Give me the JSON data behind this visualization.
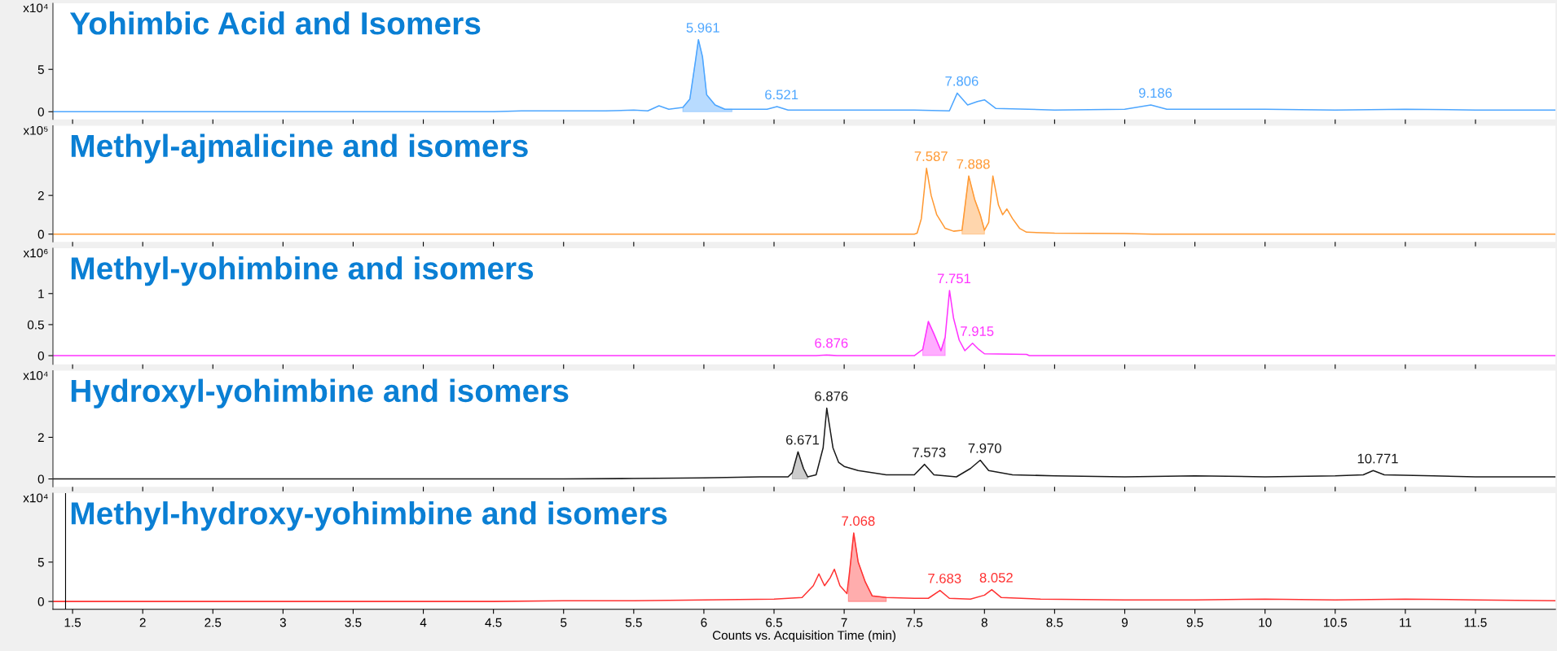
{
  "chart_data": [
    {
      "type": "line",
      "title": "Yohimbic Acid and Isomers",
      "ylabel": "x10⁴",
      "xlim": [
        1.36,
        12.07
      ],
      "ylim": [
        -0.9,
        12.8
      ],
      "yticks": [
        0,
        5
      ],
      "xticks": [
        1.5,
        2,
        2.5,
        3,
        3.5,
        4,
        4.5,
        5,
        5.5,
        6,
        6.5,
        7,
        7.5,
        8,
        8.5,
        9,
        9.5,
        10,
        10.5,
        11,
        11.5
      ],
      "tick_labels": "y",
      "series": [
        {
          "color": "#4da6ff",
          "x": [
            1.36,
            4.5,
            4.7,
            5.3,
            5.5,
            5.6,
            5.68,
            5.75,
            5.85,
            5.9,
            5.94,
            5.961,
            5.99,
            6.02,
            6.08,
            6.15,
            6.3,
            6.45,
            6.521,
            6.6,
            7.0,
            7.5,
            7.75,
            7.806,
            7.88,
            7.95,
            8.0,
            8.08,
            8.5,
            9.0,
            9.186,
            9.3,
            10,
            10.5,
            11,
            11.5,
            12.07
          ],
          "values": [
            0.0,
            0.0,
            0.1,
            0.1,
            0.2,
            0.1,
            0.7,
            0.3,
            0.5,
            1.5,
            6.0,
            8.5,
            6.5,
            2.0,
            0.8,
            0.3,
            0.3,
            0.3,
            0.6,
            0.2,
            0.2,
            0.2,
            0.1,
            2.2,
            0.8,
            1.2,
            1.4,
            0.4,
            0.2,
            0.3,
            0.8,
            0.3,
            0.3,
            0.2,
            0.3,
            0.2,
            0.2
          ]
        },
        {
          "type": "area",
          "color": "#4da6ff",
          "x": [
            5.85,
            5.9,
            5.94,
            5.961,
            5.99,
            6.02,
            6.08,
            6.15,
            6.2
          ],
          "values": [
            0.5,
            1.5,
            6.0,
            8.5,
            6.5,
            2.0,
            0.8,
            0.3,
            0.3
          ]
        }
      ],
      "annotations": [
        {
          "text": "5.961",
          "x": 5.961,
          "y": 8.5
        },
        {
          "text": "6.521",
          "x": 6.521,
          "y": 0.6
        },
        {
          "text": "7.806",
          "x": 7.806,
          "y": 2.2
        },
        {
          "text": "9.186",
          "x": 9.186,
          "y": 0.8
        }
      ]
    },
    {
      "type": "line",
      "title": "Methyl-ajmalicine and isomers",
      "ylabel": "x10⁵",
      "xlim": [
        1.36,
        12.07
      ],
      "ylim": [
        -0.4,
        5.6
      ],
      "yticks": [
        0,
        2
      ],
      "xticks": [
        1.5,
        2,
        2.5,
        3,
        3.5,
        4,
        4.5,
        5,
        5.5,
        6,
        6.5,
        7,
        7.5,
        8,
        8.5,
        9,
        9.5,
        10,
        10.5,
        11,
        11.5
      ],
      "tick_labels": "y",
      "series": [
        {
          "color": "#ff9933",
          "x": [
            1.36,
            7.5,
            7.52,
            7.55,
            7.587,
            7.62,
            7.66,
            7.72,
            7.78,
            7.84,
            7.888,
            7.93,
            7.97,
            8.0,
            8.03,
            8.06,
            8.1,
            8.13,
            8.16,
            8.2,
            8.25,
            8.3,
            8.5,
            9.0,
            9.2,
            12.07
          ],
          "values": [
            0.0,
            0.0,
            0.05,
            0.8,
            3.4,
            2.0,
            1.0,
            0.3,
            0.15,
            0.2,
            3.0,
            1.8,
            1.0,
            0.2,
            0.6,
            3.0,
            1.5,
            1.0,
            1.3,
            0.8,
            0.3,
            0.1,
            0.05,
            0.03,
            0.0,
            0.0
          ]
        },
        {
          "type": "area",
          "color": "#ff9933",
          "x": [
            7.84,
            7.888,
            7.93,
            7.97,
            8.0
          ],
          "values": [
            0.2,
            3.0,
            1.8,
            1.0,
            0.2
          ]
        }
      ],
      "annotations": [
        {
          "text": "7.587",
          "x": 7.587,
          "y": 3.4
        },
        {
          "text": "7.888",
          "x": 7.888,
          "y": 3.0
        }
      ]
    },
    {
      "type": "line",
      "title": "Methyl-yohimbine and isomers",
      "ylabel": "x10⁶",
      "xlim": [
        1.36,
        12.07
      ],
      "ylim": [
        -0.14,
        1.73
      ],
      "yticks": [
        0,
        0.5,
        1
      ],
      "xticks": [
        1.5,
        2,
        2.5,
        3,
        3.5,
        4,
        4.5,
        5,
        5.5,
        6,
        6.5,
        7,
        7.5,
        8,
        8.5,
        9,
        9.5,
        10,
        10.5,
        11,
        11.5
      ],
      "tick_labels": "y",
      "series": [
        {
          "color": "#ff33ff",
          "x": [
            1.36,
            6.8,
            6.876,
            6.95,
            7.5,
            7.56,
            7.6,
            7.64,
            7.69,
            7.72,
            7.751,
            7.78,
            7.82,
            7.86,
            7.915,
            7.96,
            8.0,
            8.3,
            8.32,
            12.07
          ],
          "values": [
            0.0,
            0.0,
            0.01,
            0.0,
            0.0,
            0.1,
            0.55,
            0.35,
            0.08,
            0.3,
            1.05,
            0.6,
            0.25,
            0.08,
            0.2,
            0.1,
            0.03,
            0.02,
            0.0,
            0.0
          ]
        },
        {
          "type": "area",
          "color": "#ff33ff",
          "x": [
            7.56,
            7.6,
            7.64,
            7.69,
            7.72
          ],
          "values": [
            0.1,
            0.55,
            0.35,
            0.08,
            0.3
          ]
        }
      ],
      "annotations": [
        {
          "text": "6.876",
          "x": 6.876,
          "y": 0.01
        },
        {
          "text": "7.751",
          "x": 7.751,
          "y": 1.05
        },
        {
          "text": "7.915",
          "x": 7.915,
          "y": 0.2
        }
      ]
    },
    {
      "type": "line",
      "title": "Hydroxyl-yohimbine and isomers",
      "ylabel": "x10⁴",
      "xlim": [
        1.36,
        12.07
      ],
      "ylim": [
        -0.38,
        5.2
      ],
      "yticks": [
        0,
        2
      ],
      "xticks": [
        1.5,
        2,
        2.5,
        3,
        3.5,
        4,
        4.5,
        5,
        5.5,
        6,
        6.5,
        7,
        7.5,
        8,
        8.5,
        9,
        9.5,
        10,
        10.5,
        11,
        11.5
      ],
      "tick_labels": "y",
      "series": [
        {
          "color": "#1a1a1a",
          "x": [
            1.36,
            5.0,
            5.5,
            6.0,
            6.4,
            6.6,
            6.63,
            6.671,
            6.71,
            6.74,
            6.8,
            6.85,
            6.876,
            6.92,
            6.96,
            7.0,
            7.1,
            7.3,
            7.5,
            7.573,
            7.64,
            7.8,
            7.9,
            7.97,
            8.03,
            8.2,
            8.5,
            9,
            9.5,
            10,
            10.5,
            10.7,
            10.771,
            10.85,
            11.2,
            11.5,
            12.07
          ],
          "values": [
            0.0,
            0.0,
            0.02,
            0.05,
            0.1,
            0.1,
            0.3,
            1.3,
            0.5,
            0.1,
            0.2,
            1.5,
            3.4,
            1.5,
            0.8,
            0.6,
            0.4,
            0.2,
            0.2,
            0.7,
            0.2,
            0.1,
            0.5,
            0.9,
            0.4,
            0.2,
            0.15,
            0.1,
            0.15,
            0.1,
            0.15,
            0.2,
            0.4,
            0.2,
            0.15,
            0.1,
            0.1
          ]
        },
        {
          "type": "area",
          "color": "#7f7f7f",
          "x": [
            6.63,
            6.671,
            6.71,
            6.74
          ],
          "values": [
            0.3,
            1.3,
            0.5,
            0.1
          ]
        }
      ],
      "annotations": [
        {
          "text": "6.671",
          "x": 6.671,
          "y": 1.3
        },
        {
          "text": "6.876",
          "x": 6.876,
          "y": 3.4
        },
        {
          "text": "7.573",
          "x": 7.573,
          "y": 0.7
        },
        {
          "text": "7.970",
          "x": 7.97,
          "y": 0.9
        },
        {
          "text": "10.771",
          "x": 10.771,
          "y": 0.4
        }
      ]
    },
    {
      "type": "line",
      "title": "Methyl-hydroxy-yohimbine and isomers",
      "ylabel": "x10⁴",
      "xlabel": "Counts vs. Acquisition Time (min)",
      "xlim": [
        1.36,
        12.07
      ],
      "ylim": [
        -1.0,
        13.75
      ],
      "yticks": [
        0,
        5
      ],
      "xticks": [
        1.5,
        2,
        2.5,
        3,
        3.5,
        4,
        4.5,
        5,
        5.5,
        6,
        6.5,
        7,
        7.5,
        8,
        8.5,
        9,
        9.5,
        10,
        10.5,
        11,
        11.5
      ],
      "series": [
        {
          "color": "#ff3333",
          "x": [
            1.36,
            4.5,
            5,
            5.5,
            6.0,
            6.5,
            6.7,
            6.78,
            6.82,
            6.86,
            6.9,
            6.93,
            6.97,
            7.02,
            7.04,
            7.068,
            7.1,
            7.15,
            7.2,
            7.3,
            7.5,
            7.6,
            7.683,
            7.75,
            7.9,
            8.0,
            8.052,
            8.12,
            8.4,
            9,
            9.5,
            10,
            10.5,
            11,
            11.5,
            12.07
          ],
          "values": [
            0.0,
            0.0,
            0.1,
            0.1,
            0.2,
            0.3,
            0.5,
            2.0,
            3.5,
            2.0,
            3.0,
            4.1,
            2.0,
            1.0,
            4.0,
            8.7,
            5.0,
            2.5,
            0.7,
            0.5,
            0.4,
            0.4,
            1.4,
            0.4,
            0.3,
            0.8,
            1.5,
            0.5,
            0.3,
            0.2,
            0.2,
            0.3,
            0.2,
            0.3,
            0.2,
            0.1
          ]
        },
        {
          "type": "area",
          "color": "#ff3333",
          "x": [
            7.03,
            7.04,
            7.068,
            7.1,
            7.15,
            7.2,
            7.3
          ],
          "values": [
            1.0,
            4.0,
            8.7,
            5.0,
            2.5,
            0.7,
            0.5
          ]
        }
      ],
      "ref_lines": [
        {
          "axis": "x",
          "value": 1.45,
          "color": "#000000"
        }
      ],
      "annotations": [
        {
          "text": "7.068",
          "x": 7.068,
          "y": 8.7
        },
        {
          "text": "7.683",
          "x": 7.683,
          "y": 1.4
        },
        {
          "text": "8.052",
          "x": 8.052,
          "y": 1.5
        }
      ]
    }
  ]
}
